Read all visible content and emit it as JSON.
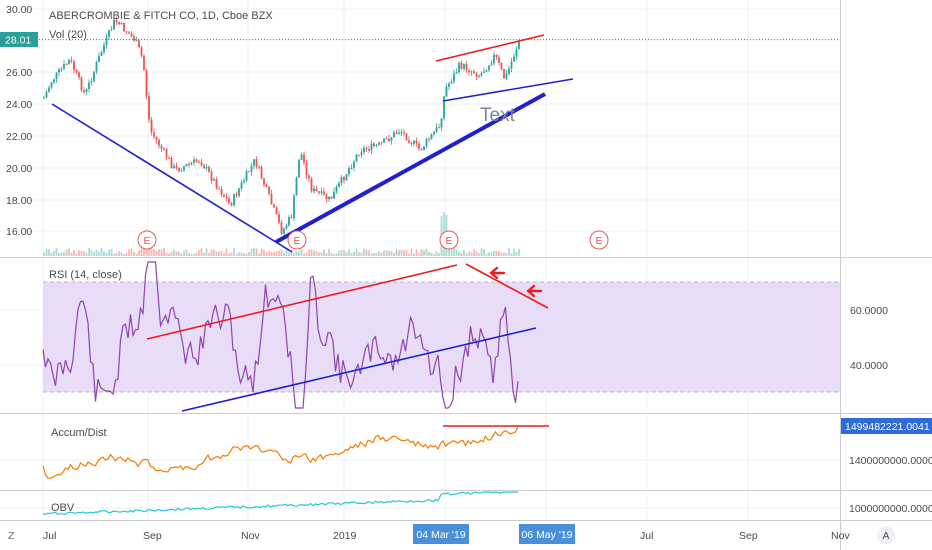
{
  "header": {
    "title": "ABERCROMBIE & FITCH CO, 1D, Cboe BZX",
    "volume_label": "Vol (20)"
  },
  "price_pane": {
    "y_ticks": [
      "30.00",
      "28.00",
      "26.00",
      "24.00",
      "22.00",
      "20.00",
      "18.00",
      "16.00"
    ],
    "current_price": "28.01",
    "earnings_marker": "E",
    "annotation_text": "Text"
  },
  "rsi_pane": {
    "label": "RSI (14, close)",
    "y_ticks": [
      "60.0000",
      "40.0000"
    ]
  },
  "ad_pane": {
    "label": "Accum/Dist",
    "y_ticks": [
      "1400000000.0000"
    ],
    "current_value": "1499482221.0041"
  },
  "obv_pane": {
    "label": "OBV",
    "y_ticks": [
      "1000000000.0000"
    ]
  },
  "time_axis": {
    "labels": [
      "Jul",
      "Sep",
      "Nov",
      "2019",
      "Mar",
      "May",
      "Jul",
      "Sep",
      "Nov"
    ],
    "highlight_start": "04 Mar '19",
    "highlight_end": "06 May '19"
  },
  "corner_buttons": {
    "left": "Z",
    "right": "A"
  },
  "colors": {
    "candle_up": "#26a69a",
    "candle_down": "#ef5350",
    "rsi_line": "#8e44ad",
    "rsi_band": "#e9dcf7",
    "ad_line": "#f57c00",
    "obv_line": "#26c6da",
    "trend_blue": "#2020d0",
    "trend_red": "#ee1c1c",
    "price_line": "#2aa198",
    "date_highlight": "#4a90d9",
    "value_tag": "#2f6cd8"
  }
}
